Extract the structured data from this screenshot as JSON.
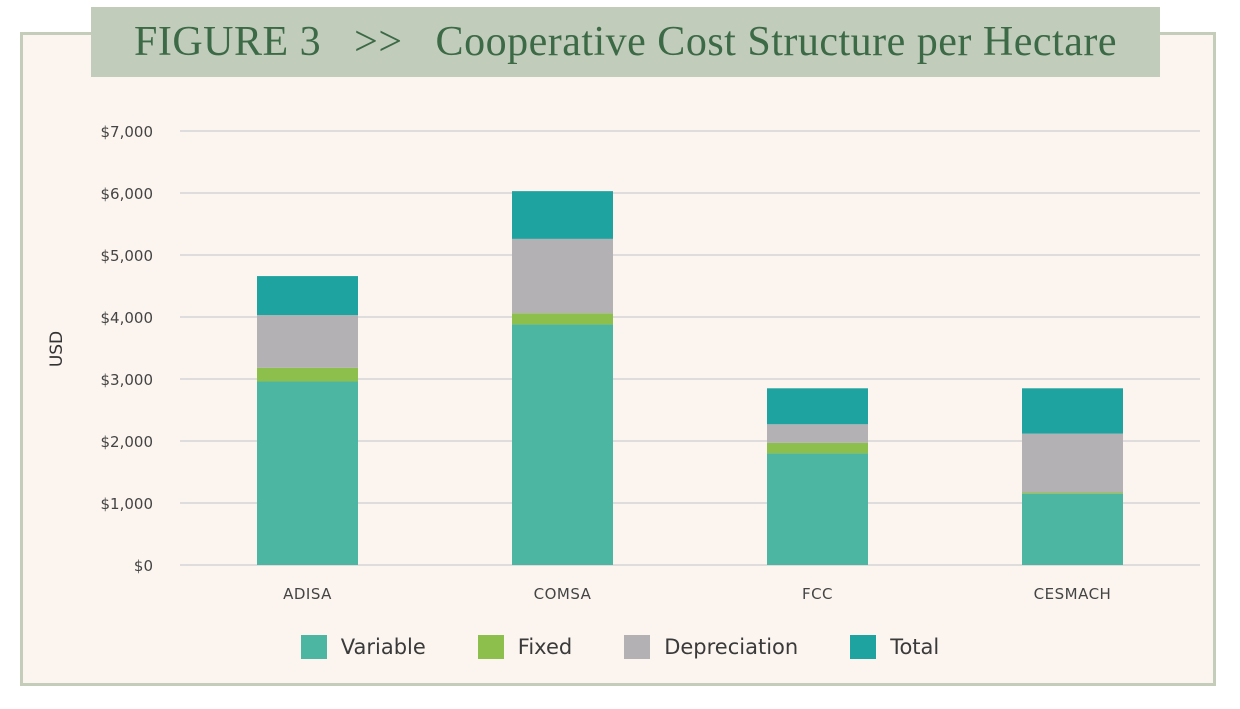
{
  "title": "FIGURE 3   >>   Cooperative Cost Structure per Hectare",
  "colors": {
    "variable": "#4db6a3",
    "fixed": "#8cbf4c",
    "depreciation": "#b3b1b3",
    "total": "#1fa3a0",
    "grid": "#dedcdc"
  },
  "chart_data": {
    "type": "bar",
    "stacked": true,
    "categories": [
      "ADISA",
      "COMSA",
      "FCC",
      "CESMACH"
    ],
    "series": [
      {
        "name": "Variable",
        "values": [
          2960,
          3880,
          1800,
          1150
        ]
      },
      {
        "name": "Fixed",
        "values": [
          220,
          180,
          170,
          20
        ]
      },
      {
        "name": "Depreciation",
        "values": [
          850,
          1200,
          300,
          950
        ]
      },
      {
        "name": "Total",
        "values": [
          630,
          770,
          580,
          730
        ]
      }
    ],
    "ylabel": "USD",
    "ylim": [
      0,
      7000
    ],
    "yticks": [
      "$0",
      "$1,000",
      "$2,000",
      "$3,000",
      "$4,000",
      "$5,000",
      "$6,000",
      "$7,000"
    ],
    "grid": true,
    "legend_position": "bottom"
  }
}
